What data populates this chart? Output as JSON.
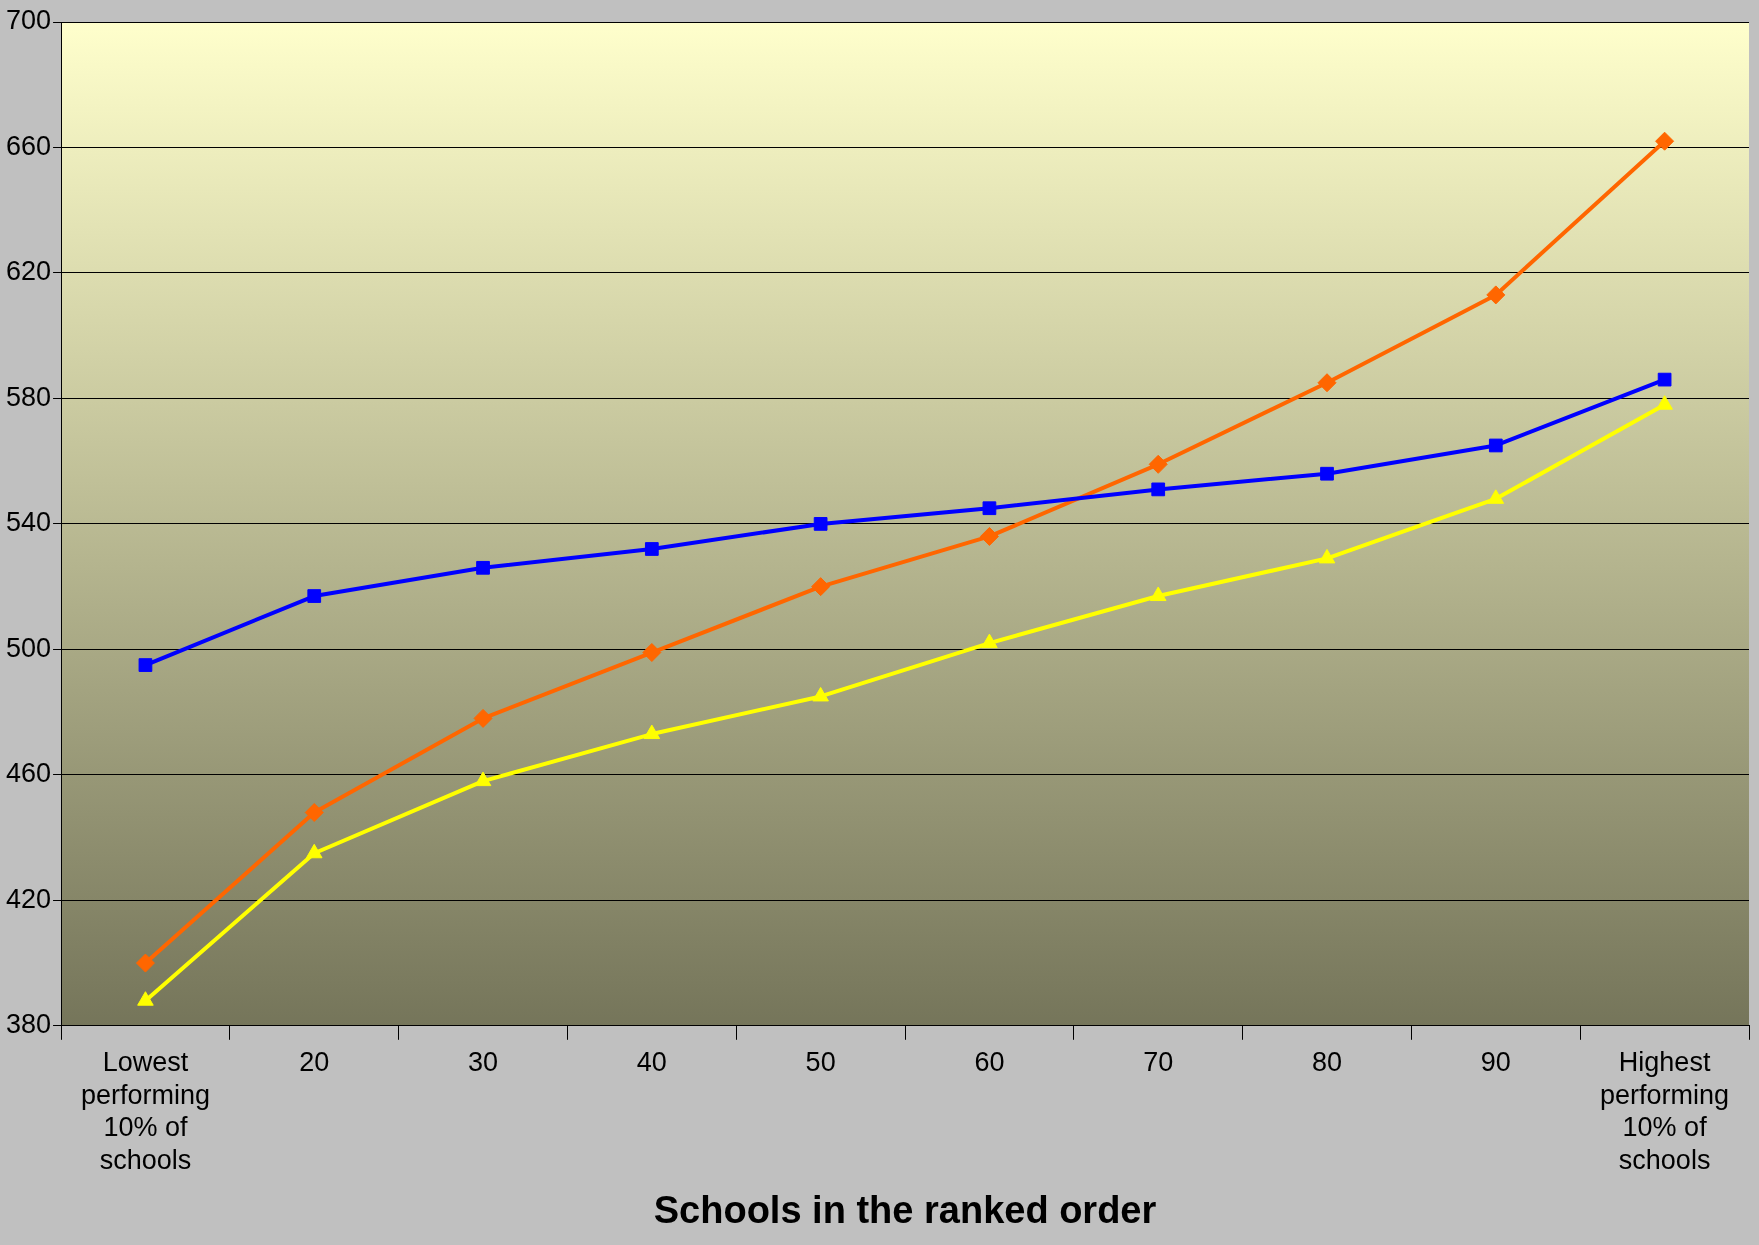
{
  "chart_data": {
    "type": "line",
    "xlabel": "Schools in the ranked order",
    "categories": [
      "Lowest performing 10% of schools",
      "20",
      "30",
      "40",
      "50",
      "60",
      "70",
      "80",
      "90",
      "Highest performing 10% of schools"
    ],
    "series": [
      {
        "color": "#0000ff",
        "marker": "square",
        "values": [
          495,
          517,
          526,
          532,
          540,
          545,
          551,
          556,
          565,
          586
        ]
      },
      {
        "color": "#ff6600",
        "marker": "diamond",
        "values": [
          400,
          448,
          478,
          499,
          520,
          536,
          559,
          585,
          613,
          662
        ]
      },
      {
        "color": "#ffff00",
        "marker": "triangle",
        "values": [
          388,
          435,
          458,
          473,
          485,
          502,
          517,
          529,
          548,
          578
        ]
      }
    ],
    "ylim": [
      380,
      700
    ],
    "yticks": [
      380,
      420,
      460,
      500,
      540,
      580,
      620,
      660,
      700
    ],
    "grid": "y",
    "legend": false,
    "line_style": "solid"
  }
}
